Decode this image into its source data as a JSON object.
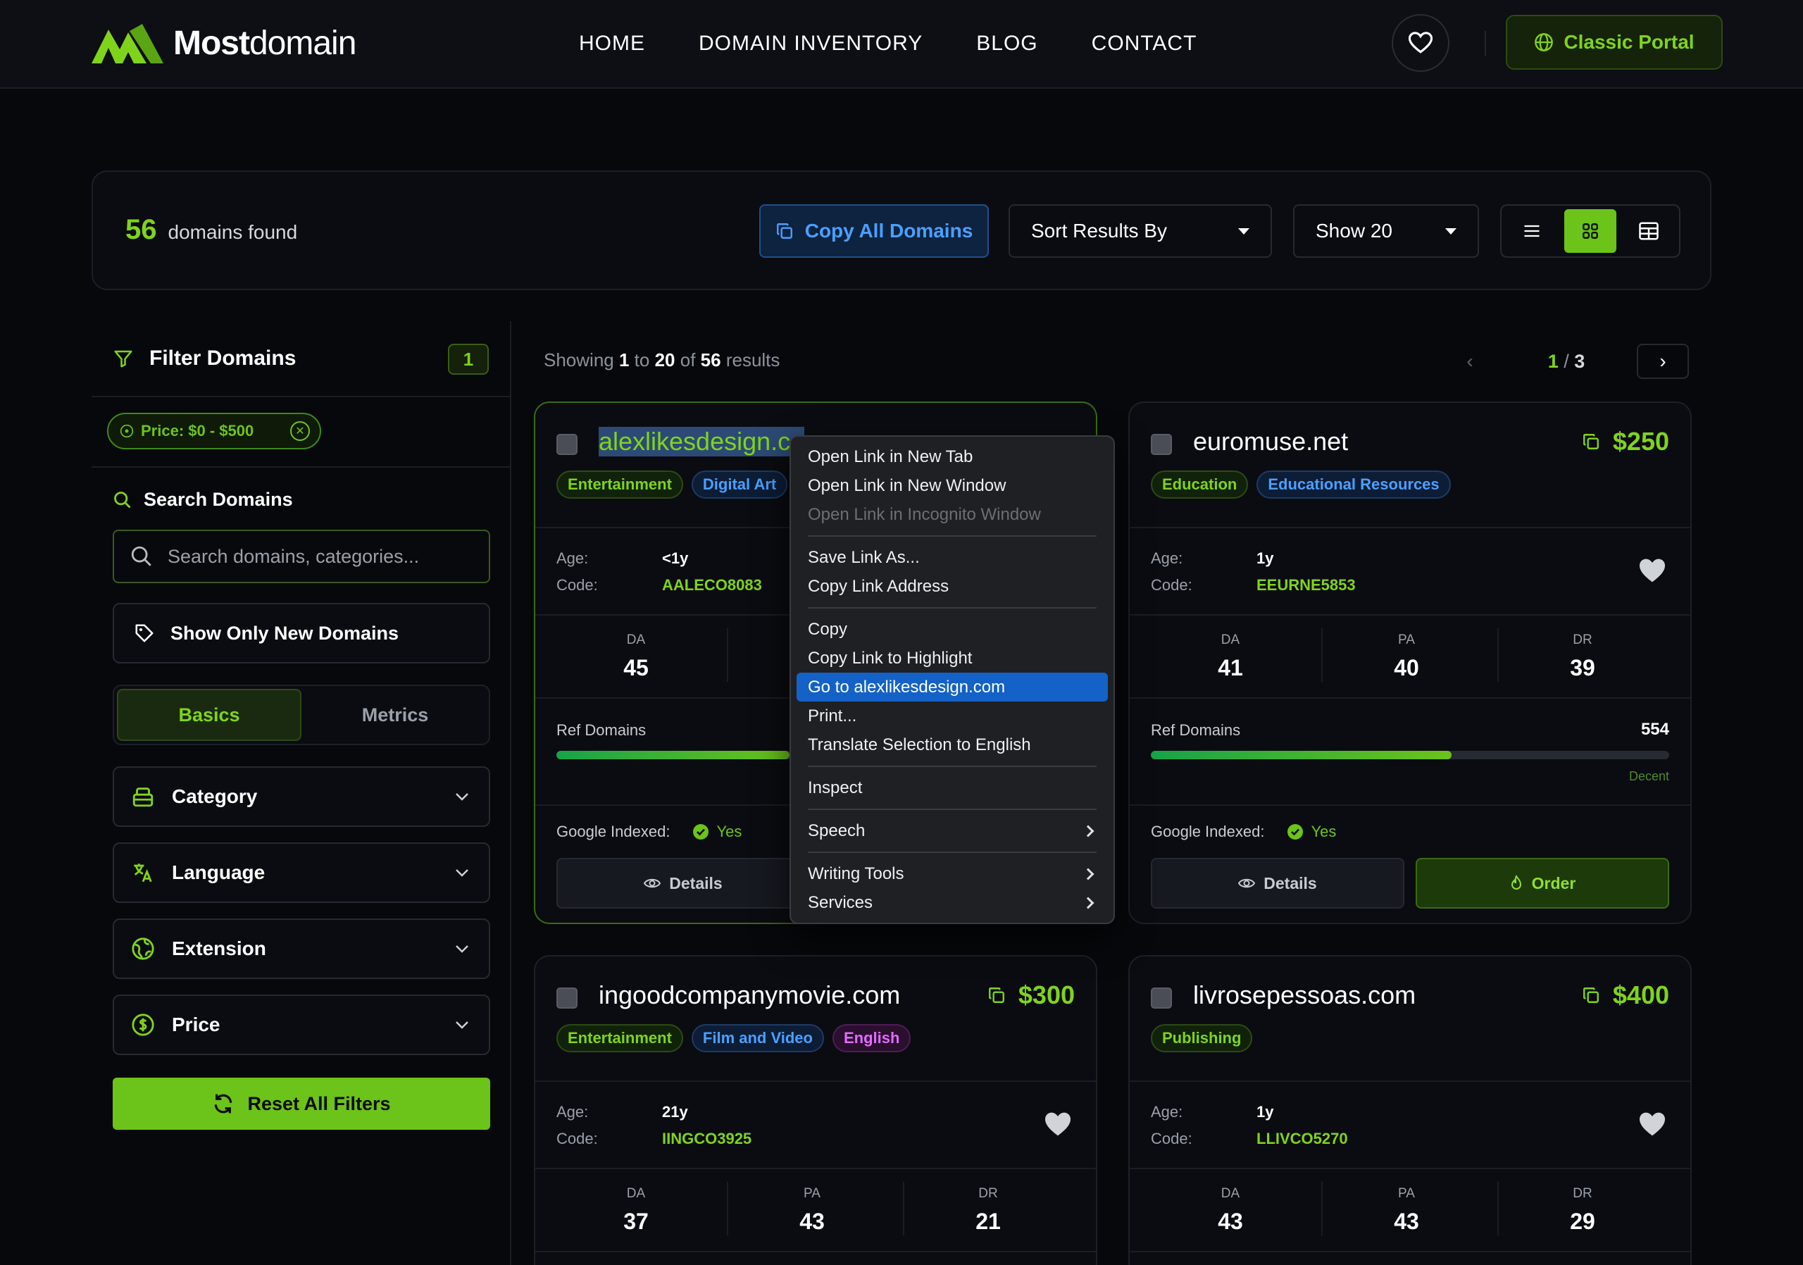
{
  "header": {
    "brand_bold": "Most",
    "brand_regular": "domain",
    "nav": [
      "HOME",
      "DOMAIN INVENTORY",
      "BLOG",
      "CONTACT"
    ],
    "portal_label": "Classic Portal"
  },
  "toolbar": {
    "count": "56",
    "count_label": "domains found",
    "copy_all_label": "Copy All Domains",
    "sort_label": "Sort Results By",
    "show_label": "Show 20",
    "active_view": "grid"
  },
  "sidebar": {
    "title": "Filter Domains",
    "badge": "1",
    "chip_label": "Price: $0 - $500",
    "search_title": "Search Domains",
    "search_placeholder": "Search domains, categories...",
    "new_domains_label": "Show Only New Domains",
    "tabs": [
      "Basics",
      "Metrics"
    ],
    "active_tab": "Basics",
    "accordions": [
      {
        "label": "Category",
        "icon": "category-icon"
      },
      {
        "label": "Language",
        "icon": "language-icon"
      },
      {
        "label": "Extension",
        "icon": "extension-icon"
      },
      {
        "label": "Price",
        "icon": "price-icon"
      }
    ],
    "reset_label": "Reset All Filters"
  },
  "results": {
    "showing_prefix": "Showing",
    "from": "1",
    "to_word": "to",
    "to": "20",
    "of_word": "of",
    "total": "56",
    "suffix": "results",
    "page_current": "1",
    "page_sep": "/",
    "page_total": "3"
  },
  "labels": {
    "age": "Age:",
    "code": "Code:",
    "da": "DA",
    "pa": "PA",
    "dr": "DR",
    "ref_domains": "Ref Domains",
    "google_indexed": "Google Indexed:",
    "details": "Details",
    "order": "Order"
  },
  "cards": [
    {
      "domain": "alexlikesdesign.co",
      "tags": [
        {
          "text": "Entertainment",
          "color": "green"
        },
        {
          "text": "Digital Art",
          "color": "blue"
        }
      ],
      "age": "<1y",
      "code": "AALECO8083",
      "da": "45",
      "indexed": "Yes",
      "ref_level": 0.45
    },
    {
      "domain": "euromuse.net",
      "price": "$250",
      "tags": [
        {
          "text": "Education",
          "color": "green"
        },
        {
          "text": "Educational Resources",
          "color": "blue"
        }
      ],
      "age": "1y",
      "code": "EEURNE5853",
      "da": "41",
      "pa": "40",
      "dr": "39",
      "ref_domains": "554",
      "ref_level": 0.58,
      "ref_note": "Decent",
      "indexed": "Yes"
    },
    {
      "domain": "ingoodcompanymovie.com",
      "price": "$300",
      "tags": [
        {
          "text": "Entertainment",
          "color": "green"
        },
        {
          "text": "Film and Video",
          "color": "blue"
        },
        {
          "text": "English",
          "color": "purple"
        }
      ],
      "age": "21y",
      "code": "IINGCO3925",
      "da": "37",
      "pa": "43",
      "dr": "21"
    },
    {
      "domain": "livrosepessoas.com",
      "price": "$400",
      "tags": [
        {
          "text": "Publishing",
          "color": "green"
        }
      ],
      "age": "1y",
      "code": "LLIVCO5270",
      "da": "43",
      "pa": "43",
      "dr": "29"
    }
  ],
  "context_menu": {
    "items": [
      {
        "label": "Open Link in New Tab"
      },
      {
        "label": "Open Link in New Window"
      },
      {
        "label": "Open Link in Incognito Window",
        "disabled": true
      },
      {
        "sep": true
      },
      {
        "label": "Save Link As..."
      },
      {
        "label": "Copy Link Address"
      },
      {
        "sep": true
      },
      {
        "label": "Copy"
      },
      {
        "label": "Copy Link to Highlight"
      },
      {
        "label": "Go to alexlikesdesign.com",
        "selected": true
      },
      {
        "label": "Print..."
      },
      {
        "label": "Translate Selection to English"
      },
      {
        "sep": true
      },
      {
        "label": "Inspect"
      },
      {
        "sep": true
      },
      {
        "label": "Speech",
        "submenu": true
      },
      {
        "sep": true
      },
      {
        "label": "Writing Tools",
        "submenu": true
      },
      {
        "label": "Services",
        "submenu": true
      }
    ]
  },
  "colors": {
    "accent": "#6cc319",
    "link_blue": "#4aa0ff",
    "background": "#07080b",
    "menu_highlight": "#1462c8"
  }
}
